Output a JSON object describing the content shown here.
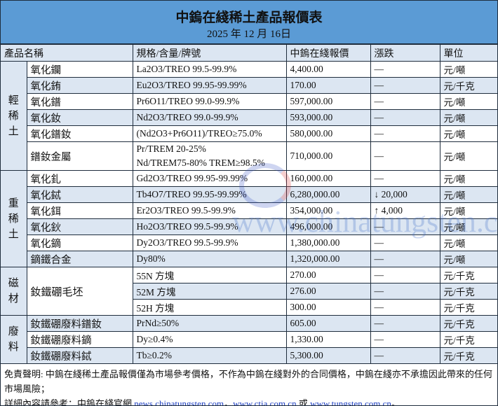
{
  "title": "中鎢在綫稀土產品報價表",
  "date": "2025 年 12 月 16日",
  "headers": [
    "產品名稱",
    "規格/含量/牌號",
    "中鎢在綫報價",
    "漲跌",
    "單位"
  ],
  "groups": [
    {
      "category": "輕稀土",
      "rows": [
        {
          "name": "氧化鑭",
          "spec": "La2O3/TREO 99.5-99.9%",
          "price": "4,400.00",
          "change": "—",
          "unit": "元/噸"
        },
        {
          "name": "氧化銪",
          "spec": "Eu2O3/TREO 99.95-99.99%",
          "price": "170.00",
          "change": "—",
          "unit": "元/千克"
        },
        {
          "name": "氧化鐠",
          "spec": "Pr6O11/TREO 99.0-99.9%",
          "price": "597,000.00",
          "change": "—",
          "unit": "元/噸"
        },
        {
          "name": "氧化釹",
          "spec": "Nd2O3/TREO 99.0-99.9%",
          "price": "593,000.00",
          "change": "—",
          "unit": "元/噸"
        },
        {
          "name": "氧化鐠釹",
          "spec": "(Nd2O3+Pr6O11)/TREO≥75.0%",
          "price": "580,000.00",
          "change": "—",
          "unit": "元/噸"
        },
        {
          "name": "鐠釹金屬",
          "spec": "Pr/TREM 20-25%",
          "spec2": "Nd/TREM75-80% TREM≥98.5%",
          "price": "710,000.00",
          "change": "—",
          "unit": "元/噸"
        }
      ]
    },
    {
      "category": "重稀土",
      "rows": [
        {
          "name": "氧化釓",
          "spec": "Gd2O3/TREO 99.95-99.99%",
          "price": "160,000.00",
          "change": "—",
          "unit": "元/噸"
        },
        {
          "name": "氧化鋱",
          "spec": "Tb4O7/TREO 99.95-99.99%",
          "price": "6,280,000.00",
          "change": "↓ 20,000",
          "unit": "元/噸"
        },
        {
          "name": "氧化鉺",
          "spec": "Er2O3/TREO 99.5-99.9%",
          "price": "354,000.00",
          "change": "↑ 4,000",
          "unit": "元/噸"
        },
        {
          "name": "氧化鈥",
          "spec": "Ho2O3/TREO 99.5-99.9%",
          "price": "496,000.00",
          "change": "—",
          "unit": "元/噸"
        },
        {
          "name": "氧化鏑",
          "spec": "Dy2O3/TREO 99.5-99.9%",
          "price": "1,380,000.00",
          "change": "—",
          "unit": "元/噸"
        },
        {
          "name": "鏑鐵合金",
          "spec": "Dy80%",
          "price": "1,320,000.00",
          "change": "—",
          "unit": "元/噸"
        }
      ]
    },
    {
      "category": "磁材",
      "name": "釹鐵硼毛坯",
      "rows": [
        {
          "spec": "55N 方塊",
          "price": "270.00",
          "change": "—",
          "unit": "元/千克"
        },
        {
          "spec": "52M 方塊",
          "price": "276.00",
          "change": "—",
          "unit": "元/千克"
        },
        {
          "spec": "52H 方塊",
          "price": "300.00",
          "change": "—",
          "unit": "元/千克"
        }
      ]
    },
    {
      "category": "廢料",
      "rows": [
        {
          "name": "釹鐵硼廢料鐠釹",
          "spec": "PrNd≥50%",
          "price": "605.00",
          "change": "—",
          "unit": "元/千克"
        },
        {
          "name": "釹鐵硼廢料鏑",
          "spec": "Dy≥0.4%",
          "price": "1,330.00",
          "change": "—",
          "unit": "元/千克"
        },
        {
          "name": "釹鐵硼廢料鋱",
          "spec": "Tb≥0.2%",
          "price": "5,300.00",
          "change": "—",
          "unit": "元/千克"
        }
      ]
    }
  ],
  "footer": {
    "disclaimer": "免責聲明: 中鎢在綫稀土產品報價僅為市場參考價格，不作為中鎢在綫對外的合同價格，中鎢在綫亦不承擔因此帶來的任何市場風險；",
    "details_prefix": "詳細內容請參考：中鎢在綫官網 ",
    "link1": "news.chinatungsten.com",
    "sep": "，",
    "link2": "www.ctia.com.cn",
    "or": " 或 ",
    "link3": "www.tungsten.com.cn",
    "end": "。"
  },
  "watermark": "www.chinatungsten.com",
  "logo_text": "CTOMS",
  "colors": {
    "title_band": "#5b9bd5",
    "row_alt": "#dce6f2",
    "link": "#1a3cc0"
  }
}
